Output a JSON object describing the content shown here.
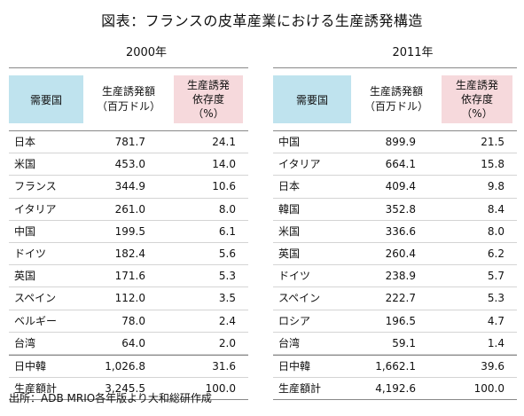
{
  "title": "図表：フランスの皮革産業における生産誘発構造",
  "columns": {
    "country": "需要国",
    "value_l1": "生産誘発額",
    "value_l2": "（百万ドル）",
    "dep_l1": "生産誘発",
    "dep_l2": "依存度",
    "dep_l3": "（%）"
  },
  "tables": [
    {
      "year": "2000年",
      "rows": [
        {
          "country": "日本",
          "value": "781.7",
          "dep": "24.1"
        },
        {
          "country": "米国",
          "value": "453.0",
          "dep": "14.0"
        },
        {
          "country": "フランス",
          "value": "344.9",
          "dep": "10.6"
        },
        {
          "country": "イタリア",
          "value": "261.0",
          "dep": "8.0"
        },
        {
          "country": "中国",
          "value": "199.5",
          "dep": "6.1"
        },
        {
          "country": "ドイツ",
          "value": "182.4",
          "dep": "5.6"
        },
        {
          "country": "英国",
          "value": "171.6",
          "dep": "5.3"
        },
        {
          "country": "スペイン",
          "value": "112.0",
          "dep": "3.5"
        },
        {
          "country": "ベルギー",
          "value": "78.0",
          "dep": "2.4"
        },
        {
          "country": "台湾",
          "value": "64.0",
          "dep": "2.0"
        }
      ],
      "summary": [
        {
          "country": "日中韓",
          "value": "1,026.8",
          "dep": "31.6"
        },
        {
          "country": "生産額計",
          "value": "3,245.5",
          "dep": "100.0"
        }
      ]
    },
    {
      "year": "2011年",
      "rows": [
        {
          "country": "中国",
          "value": "899.9",
          "dep": "21.5"
        },
        {
          "country": "イタリア",
          "value": "664.1",
          "dep": "15.8"
        },
        {
          "country": "日本",
          "value": "409.4",
          "dep": "9.8"
        },
        {
          "country": "韓国",
          "value": "352.8",
          "dep": "8.4"
        },
        {
          "country": "米国",
          "value": "336.6",
          "dep": "8.0"
        },
        {
          "country": "英国",
          "value": "260.4",
          "dep": "6.2"
        },
        {
          "country": "ドイツ",
          "value": "238.9",
          "dep": "5.7"
        },
        {
          "country": "スペイン",
          "value": "222.7",
          "dep": "5.3"
        },
        {
          "country": "ロシア",
          "value": "196.5",
          "dep": "4.7"
        },
        {
          "country": "台湾",
          "value": "59.1",
          "dep": "1.4"
        }
      ],
      "summary": [
        {
          "country": "日中韓",
          "value": "1,662.1",
          "dep": "39.6"
        },
        {
          "country": "生産額計",
          "value": "4,192.6",
          "dep": "100.0"
        }
      ]
    }
  ],
  "source": "出所：ADB MRIO各年版より大和総研作成",
  "colors": {
    "country_header_bg": "#bfe3ee",
    "dependency_header_bg": "#f6d9dc"
  }
}
